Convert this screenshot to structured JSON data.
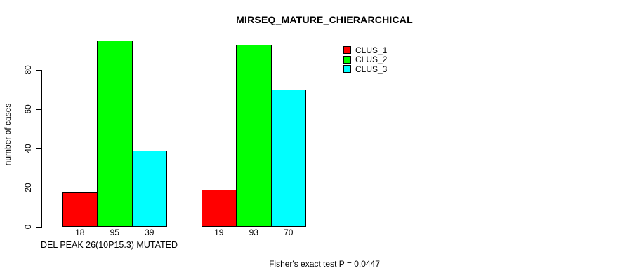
{
  "chart_data": {
    "type": "bar",
    "title": "MIRSEQ_MATURE_CHIERARCHICAL",
    "ylabel": "number of cases",
    "xlabel": "DEL PEAK 26(10P15.3) MUTATED",
    "annotation": "Fisher's exact test P = 0.0447",
    "series": [
      {
        "name": "CLUS_1",
        "color": "#FF0000",
        "values": [
          18,
          19
        ]
      },
      {
        "name": "CLUS_2",
        "color": "#00FF00",
        "values": [
          95,
          93
        ]
      },
      {
        "name": "CLUS_3",
        "color": "#00FFFF",
        "values": [
          39,
          70
        ]
      }
    ],
    "x_tick_labels": [
      [
        "18",
        "95",
        "39"
      ],
      [
        "19",
        "93",
        "70"
      ]
    ],
    "y_ticks": [
      0,
      20,
      40,
      60,
      80
    ],
    "ylim": [
      0,
      100
    ],
    "grid": false,
    "legend_position": "top-right",
    "colors": {
      "background": "#FFFFFF",
      "text": "#000000",
      "bar_border": "#000000"
    }
  }
}
